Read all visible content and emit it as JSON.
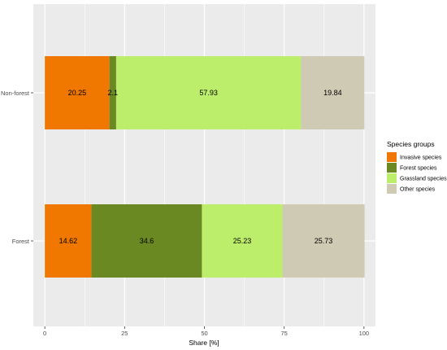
{
  "chart_data": {
    "type": "bar",
    "orientation": "horizontal",
    "stacked": true,
    "categories": [
      "Non-forest",
      "Forest"
    ],
    "series": [
      {
        "name": "Invasive species",
        "color": "#f07800",
        "values": [
          20.25,
          14.62
        ]
      },
      {
        "name": "Forest species",
        "color": "#6b8923",
        "values": [
          2.1,
          34.6
        ]
      },
      {
        "name": "Grassland species",
        "color": "#bdee6b",
        "values": [
          57.93,
          25.23
        ]
      },
      {
        "name": "Other species",
        "color": "#cfcab3",
        "values": [
          19.84,
          25.73
        ]
      }
    ],
    "data_labels": [
      [
        "20.25",
        "2.1",
        "57.93",
        "19.84"
      ],
      [
        "14.62",
        "34.6",
        "25.23",
        "25.73"
      ]
    ],
    "xlabel": "Share [%]",
    "ylabel": "",
    "xlim": [
      -3.6,
      103.6
    ],
    "xticks": [
      0,
      25,
      50,
      75,
      100
    ],
    "grid": true,
    "legend": {
      "title": "Species groups",
      "position": "right"
    },
    "panel_background": "#ebebeb",
    "grid_color": "#ffffff"
  }
}
